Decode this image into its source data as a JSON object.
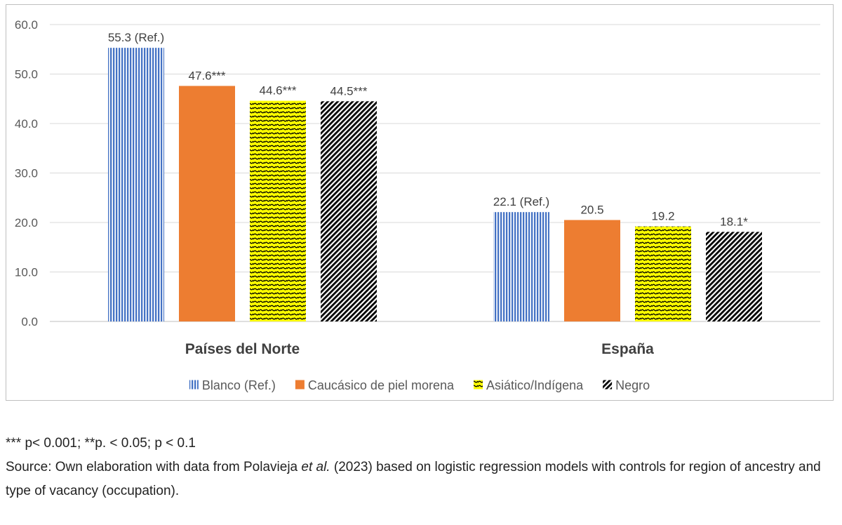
{
  "chart_data": {
    "type": "bar",
    "categories": [
      "Países del Norte",
      "España"
    ],
    "series": [
      {
        "name": "Blanco (Ref.)",
        "values": [
          55.3,
          22.1
        ],
        "labels": [
          "55.3 (Ref.)",
          "22.1 (Ref.)"
        ],
        "color": "#4472c4",
        "pattern": "vertical-lines"
      },
      {
        "name": "Caucásico de piel morena",
        "values": [
          47.6,
          20.5
        ],
        "labels": [
          "47.6***",
          "20.5"
        ],
        "color": "#ed7d31",
        "pattern": "solid"
      },
      {
        "name": "Asiático/Indígena",
        "values": [
          44.6,
          19.2
        ],
        "labels": [
          "44.6***",
          "19.2"
        ],
        "color": "#ffff00",
        "pattern": "wave"
      },
      {
        "name": "Negro",
        "values": [
          44.5,
          18.1
        ],
        "labels": [
          "44.5***",
          "18.1*"
        ],
        "color": "#000000",
        "pattern": "diagonal-hatch"
      }
    ],
    "yticks": [
      "0.0",
      "10.0",
      "20.0",
      "30.0",
      "40.0",
      "50.0",
      "60.0"
    ],
    "ylim": [
      0,
      60
    ],
    "grid": true,
    "legend_position": "bottom"
  },
  "notes": {
    "significance": "*** p< 0.001; **p. < 0.05; p < 0.1",
    "source_prefix": "Source: Own elaboration with data from Polavieja ",
    "source_italic": "et al.",
    "source_suffix": " (2023) based on logistic regression models with controls for region of ancestry and type of vacancy (occupation)."
  }
}
